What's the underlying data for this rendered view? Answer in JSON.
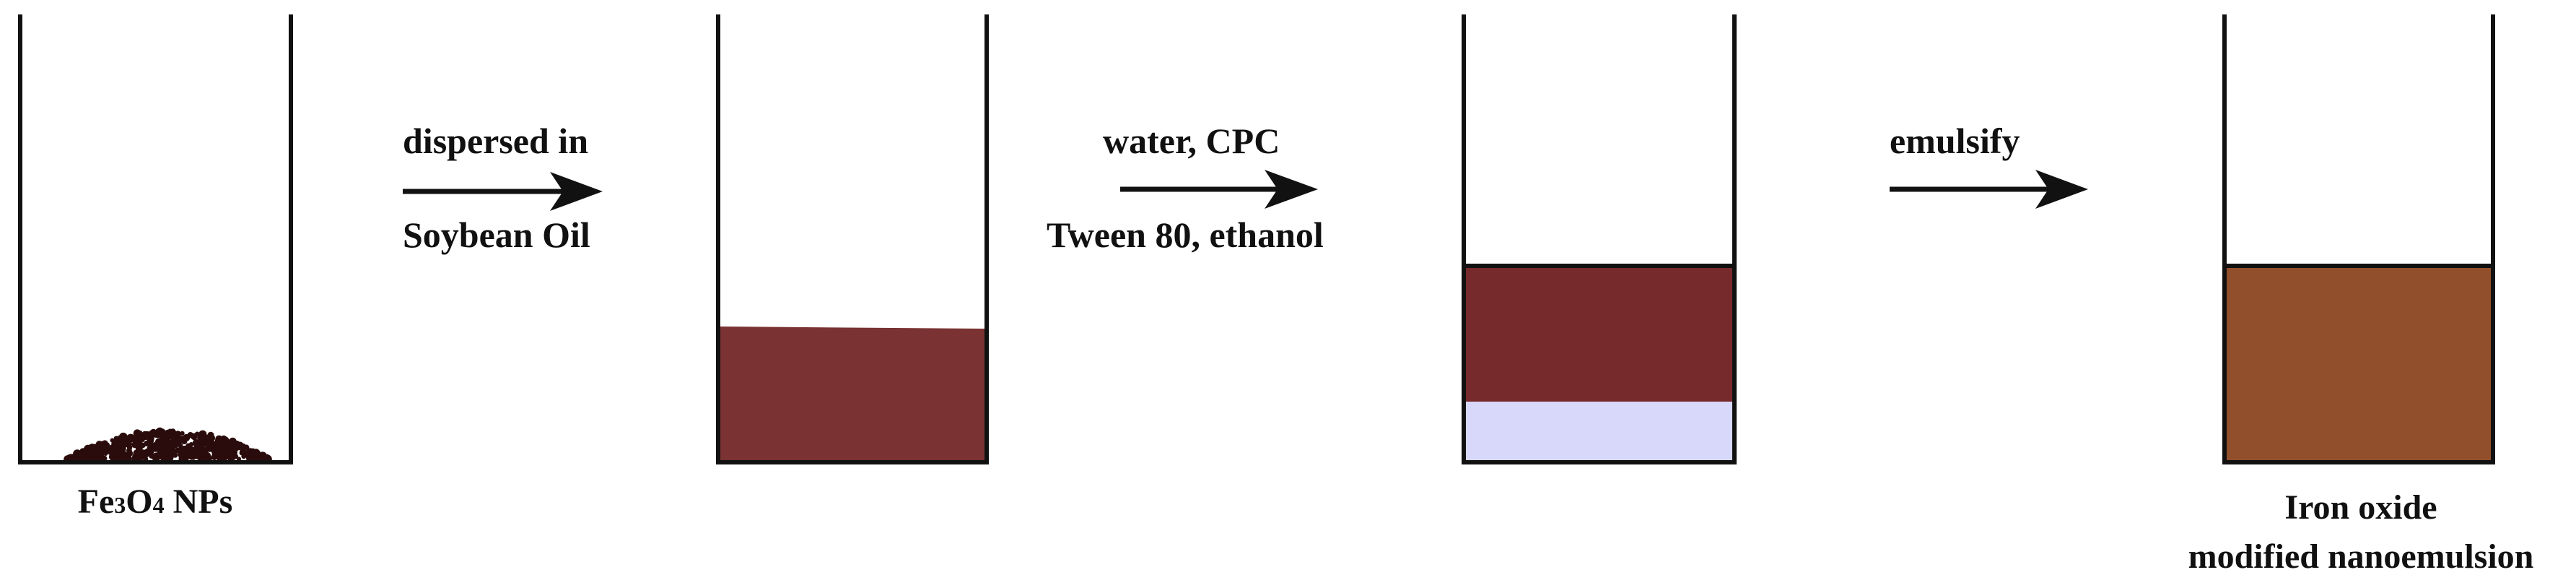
{
  "steps": [
    {
      "caption_parts": [
        "Fe",
        "3",
        "O",
        "4",
        " NPs"
      ]
    },
    {
      "arrow_label_top": "dispersed in",
      "arrow_label_bottom": "Soybean Oil"
    },
    {
      "arrow_label_top": "water, CPC",
      "arrow_label_bottom": "Tween 80, ethanol"
    },
    {
      "arrow_label_top": "emulsify"
    },
    {
      "caption_line1": "Iron oxide",
      "caption_line2": "modified nanoemulsion"
    }
  ],
  "colors": {
    "outline": "#111111",
    "particles": "#2a0c0c",
    "oil_phase": "#7a3232",
    "oil_layer": "#772a2c",
    "water_layer": "#d8d8fb",
    "nanoemulsion": "#91502b"
  }
}
